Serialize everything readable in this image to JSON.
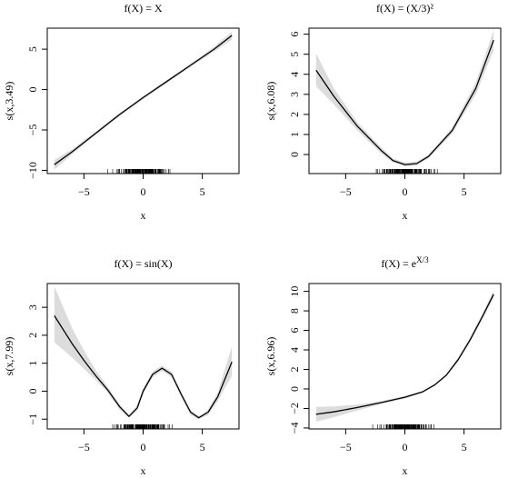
{
  "chart_data": [
    {
      "type": "line",
      "title": "f(X) = X",
      "xlabel": "x",
      "ylabel": "s(x,3.49)",
      "xlim": [
        -8.1,
        8.1
      ],
      "ylim": [
        -10.4,
        7.6
      ],
      "xticks": [
        -5,
        0,
        5
      ],
      "yticks": [
        -10,
        -5,
        0,
        5
      ],
      "x": [
        -7.5,
        -6,
        -4,
        -2,
        0,
        2,
        4,
        6,
        7.5
      ],
      "y": [
        -9.3,
        -7.7,
        -5.4,
        -3.1,
        -1.0,
        1.0,
        3.0,
        5.0,
        6.7
      ],
      "band_lower": [
        -9.9,
        -8.0,
        -5.6,
        -3.3,
        -1.2,
        0.8,
        2.8,
        4.7,
        6.2
      ],
      "band_upper": [
        -8.7,
        -7.4,
        -5.2,
        -2.9,
        -0.8,
        1.2,
        3.2,
        5.3,
        7.2
      ],
      "rug": true
    },
    {
      "type": "line",
      "title": "f(X) = (X/3)²",
      "xlabel": "x",
      "ylabel": "s(x,6.08)",
      "xlim": [
        -8.1,
        8.1
      ],
      "ylim": [
        -0.95,
        6.3
      ],
      "xticks": [
        -5,
        0,
        5
      ],
      "yticks": [
        0,
        1,
        2,
        3,
        4,
        5,
        6
      ],
      "x": [
        -7.5,
        -6,
        -4,
        -2,
        -1,
        0,
        1,
        2,
        4,
        6,
        7.5
      ],
      "y": [
        4.2,
        2.9,
        1.4,
        0.2,
        -0.3,
        -0.5,
        -0.45,
        -0.1,
        1.2,
        3.3,
        5.7
      ],
      "band_lower": [
        3.4,
        2.5,
        1.2,
        0.05,
        -0.4,
        -0.6,
        -0.55,
        -0.2,
        1.05,
        3.0,
        5.2
      ],
      "band_upper": [
        5.05,
        3.3,
        1.6,
        0.35,
        -0.2,
        -0.4,
        -0.35,
        0.0,
        1.35,
        3.6,
        6.2
      ],
      "rug": true
    },
    {
      "type": "line",
      "title": "f(X) = sin(X)",
      "xlabel": "x",
      "ylabel": "s(x,7.99)",
      "xlim": [
        -8.1,
        8.1
      ],
      "ylim": [
        -1.35,
        3.85
      ],
      "xticks": [
        -5,
        0,
        5
      ],
      "yticks": [
        -1,
        0,
        1,
        2,
        3
      ],
      "x": [
        -7.5,
        -6,
        -5,
        -4,
        -3,
        -2,
        -1.2,
        -0.5,
        0,
        0.8,
        1.6,
        2.4,
        3.2,
        4,
        4.7,
        5.5,
        6.3,
        7.5
      ],
      "y": [
        2.7,
        1.7,
        1.1,
        0.55,
        0.05,
        -0.55,
        -0.9,
        -0.6,
        0.0,
        0.6,
        0.82,
        0.6,
        -0.1,
        -0.75,
        -0.95,
        -0.75,
        -0.2,
        1.05
      ],
      "band_lower": [
        1.75,
        1.2,
        0.8,
        0.4,
        -0.05,
        -0.65,
        -0.95,
        -0.7,
        -0.1,
        0.5,
        0.72,
        0.5,
        -0.2,
        -0.85,
        -1.0,
        -0.85,
        -0.35,
        0.55
      ],
      "band_upper": [
        3.75,
        2.25,
        1.45,
        0.75,
        0.15,
        -0.45,
        -0.85,
        -0.5,
        0.1,
        0.7,
        0.92,
        0.7,
        0.0,
        -0.65,
        -0.9,
        -0.65,
        -0.05,
        1.6
      ],
      "rug": true
    },
    {
      "type": "line",
      "title": "f(X) = e^{X/3}",
      "xlabel": "x",
      "ylabel": "s(x,6.96)",
      "xlim": [
        -8.1,
        8.1
      ],
      "ylim": [
        -4.1,
        10.8
      ],
      "xticks": [
        -5,
        0,
        5
      ],
      "yticks": [
        -4,
        -2,
        0,
        2,
        4,
        6,
        8,
        10
      ],
      "x": [
        -7.5,
        -6,
        -4,
        -2,
        0,
        1.5,
        2.5,
        3.5,
        4.5,
        5.5,
        6.5,
        7.5
      ],
      "y": [
        -2.6,
        -2.35,
        -1.9,
        -1.4,
        -0.85,
        -0.3,
        0.4,
        1.4,
        3.0,
        5.0,
        7.3,
        9.7
      ],
      "band_lower": [
        -3.35,
        -2.9,
        -2.2,
        -1.55,
        -1.0,
        -0.4,
        0.3,
        1.3,
        2.8,
        4.75,
        7.0,
        9.3
      ],
      "band_upper": [
        -1.85,
        -1.8,
        -1.6,
        -1.25,
        -0.7,
        -0.2,
        0.5,
        1.5,
        3.2,
        5.25,
        7.6,
        10.1
      ],
      "rug": true
    }
  ]
}
